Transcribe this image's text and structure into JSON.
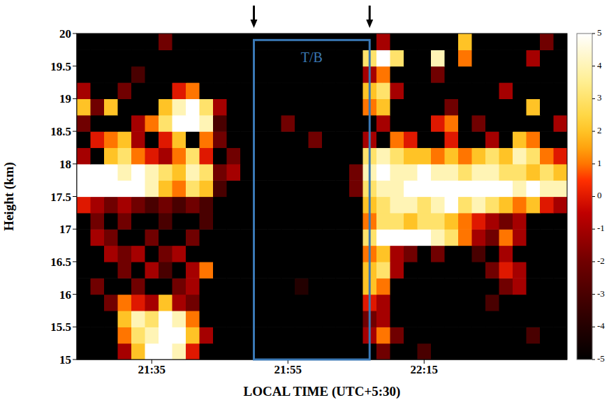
{
  "chart_data": {
    "type": "heatmap",
    "xlabel": "LOCAL TIME (UTC+5:30)",
    "ylabel": "Height (km)",
    "xlim": [
      1284,
      1356
    ],
    "xticks": [
      {
        "value": 1295,
        "label": "21:35"
      },
      {
        "value": 1315,
        "label": "21:55"
      },
      {
        "value": 1335,
        "label": "22:15"
      }
    ],
    "ylim": [
      15,
      20
    ],
    "yticks": [
      15,
      15.5,
      16,
      16.5,
      17,
      17.5,
      18,
      18.5,
      19,
      19.5,
      20
    ],
    "x": [
      1285,
      1287,
      1289,
      1291,
      1293,
      1295,
      1297,
      1299,
      1301,
      1303,
      1305,
      1307,
      1309,
      1311,
      1313,
      1315,
      1317,
      1319,
      1321,
      1323,
      1325,
      1327,
      1329,
      1331,
      1333,
      1335,
      1337,
      1339,
      1341,
      1343,
      1345,
      1347,
      1349,
      1351,
      1353,
      1355
    ],
    "y": [
      15.125,
      15.375,
      15.625,
      15.875,
      16.125,
      16.375,
      16.625,
      16.875,
      17.125,
      17.375,
      17.625,
      17.875,
      18.125,
      18.375,
      18.625,
      18.875,
      19.125,
      19.375,
      19.625,
      19.875
    ],
    "z": [
      [
        -5,
        -5,
        -5,
        -1,
        2,
        5,
        5,
        4,
        0,
        -5,
        -5,
        -5,
        -5,
        -5,
        -5,
        -5,
        -5,
        -5,
        -5,
        -5,
        -5,
        -5,
        -2,
        -5,
        -5,
        -3,
        -5,
        -5,
        -5,
        -5,
        -5,
        -5,
        -5,
        -5,
        -5,
        -5
      ],
      [
        -5,
        -5,
        -5,
        1,
        3,
        4,
        5,
        5,
        2,
        -1,
        -5,
        -5,
        -5,
        -5,
        -5,
        -5,
        -5,
        -5,
        -5,
        -5,
        -5,
        -1,
        1,
        -2,
        -5,
        -5,
        -5,
        -5,
        -5,
        -5,
        -5,
        -5,
        -5,
        -3,
        -5,
        -5
      ],
      [
        -5,
        -5,
        -5,
        2,
        4,
        3,
        5,
        4,
        1,
        -5,
        -5,
        -5,
        -5,
        -5,
        -5,
        -5,
        -5,
        -5,
        -5,
        -5,
        -5,
        -2,
        -1,
        -5,
        -5,
        -5,
        -5,
        -5,
        -5,
        -5,
        -5,
        -5,
        -5,
        -5,
        -5,
        -5
      ],
      [
        -5,
        -5,
        -2,
        1,
        0,
        -1,
        2,
        -1,
        -2,
        -5,
        -5,
        -5,
        -5,
        -5,
        -5,
        -5,
        -5,
        -5,
        -5,
        -5,
        -5,
        0,
        -1,
        -5,
        -5,
        -5,
        -5,
        -5,
        -5,
        -5,
        -3,
        -5,
        -5,
        -5,
        -5,
        -5
      ],
      [
        -5,
        -2,
        -5,
        -5,
        -2,
        -5,
        -5,
        -2,
        -1,
        -5,
        -5,
        -5,
        -5,
        -5,
        -5,
        -5,
        -4,
        -5,
        -5,
        -5,
        -5,
        2,
        1,
        -5,
        -5,
        -5,
        -5,
        -5,
        -5,
        -5,
        -5,
        -2,
        -1,
        -5,
        -5,
        -5
      ],
      [
        -5,
        -5,
        -5,
        -2,
        -5,
        -1,
        -3,
        -5,
        -1,
        1,
        -5,
        -5,
        -5,
        -5,
        -5,
        -5,
        -5,
        -5,
        -5,
        -5,
        -5,
        2,
        3,
        -1,
        -5,
        -5,
        -5,
        -5,
        -5,
        -5,
        -2,
        0,
        -1,
        -5,
        -5,
        -5
      ],
      [
        -5,
        -5,
        -1,
        -2,
        -1,
        -5,
        -2,
        -1,
        -5,
        -5,
        -5,
        -5,
        -5,
        -5,
        -5,
        -5,
        -5,
        -5,
        -5,
        -5,
        -5,
        1,
        2,
        -1,
        -2,
        -5,
        -2,
        -5,
        -5,
        -3,
        -5,
        -1,
        -5,
        -5,
        -5,
        -5
      ],
      [
        -5,
        -1,
        -2,
        -5,
        -5,
        -2,
        -5,
        -5,
        -2,
        -5,
        -5,
        -5,
        -5,
        -5,
        -5,
        -5,
        -5,
        -5,
        -5,
        -5,
        -5,
        3,
        5,
        5,
        5,
        5,
        4,
        3,
        1,
        -1,
        -2,
        1,
        -1,
        -5,
        -5,
        -5
      ],
      [
        -5,
        -2,
        -5,
        -2,
        -5,
        -5,
        -3,
        -5,
        -5,
        -3,
        -5,
        -5,
        -5,
        -5,
        -5,
        -5,
        -5,
        -5,
        -5,
        -5,
        -5,
        1,
        3,
        3,
        2,
        3,
        3,
        2,
        1,
        0,
        -1,
        -2,
        -1,
        -5,
        -5,
        -5
      ],
      [
        0,
        -1,
        -2,
        -1,
        -2,
        -3,
        -2,
        -3,
        -2,
        -3,
        -5,
        -5,
        -5,
        -5,
        -5,
        -5,
        -5,
        -5,
        -5,
        -5,
        -5,
        2,
        3,
        4,
        4,
        3,
        4,
        5,
        3,
        4,
        3,
        2,
        1,
        2,
        0,
        -1
      ],
      [
        5,
        5,
        5,
        5,
        5,
        4,
        2,
        1,
        3,
        2,
        -3,
        -5,
        -5,
        -5,
        -5,
        -5,
        -5,
        -5,
        -5,
        -5,
        -2,
        3,
        4,
        4,
        5,
        5,
        5,
        5,
        5,
        5,
        5,
        5,
        4,
        5,
        4,
        4
      ],
      [
        5,
        5,
        5,
        4,
        5,
        4,
        3,
        2,
        4,
        3,
        -2,
        -1,
        -5,
        -5,
        -5,
        -5,
        -5,
        -5,
        -5,
        -5,
        -2,
        4,
        5,
        4,
        4,
        5,
        4,
        4,
        3,
        4,
        4,
        3,
        3,
        2,
        3,
        2
      ],
      [
        -1,
        -5,
        2,
        3,
        1,
        0,
        -1,
        1,
        3,
        0,
        -5,
        -2,
        -5,
        -5,
        -5,
        -5,
        -5,
        -5,
        -5,
        -5,
        -5,
        3,
        4,
        3,
        2,
        2,
        1,
        2,
        1,
        2,
        3,
        2,
        4,
        3,
        1,
        0
      ],
      [
        -5,
        0,
        1,
        2,
        -1,
        -5,
        0,
        2,
        -5,
        1,
        -2,
        -5,
        -5,
        -5,
        -5,
        -5,
        -5,
        -2,
        -5,
        -5,
        -5,
        -1,
        -5,
        1,
        0,
        -5,
        -5,
        0,
        -5,
        -5,
        -1,
        -5,
        2,
        1,
        -5,
        -5
      ],
      [
        -2,
        -5,
        -5,
        -5,
        -1,
        1,
        3,
        5,
        5,
        4,
        -3,
        -5,
        -5,
        -5,
        -5,
        -2,
        -5,
        -5,
        -5,
        -5,
        -5,
        -5,
        -1,
        -5,
        -5,
        -5,
        0,
        1,
        -5,
        -2,
        -5,
        -5,
        -5,
        -5,
        -5,
        -1
      ],
      [
        2,
        -2,
        2,
        -5,
        -5,
        -5,
        2,
        4,
        5,
        3,
        -1,
        -5,
        -5,
        -5,
        -5,
        -5,
        -5,
        -5,
        -5,
        -5,
        -5,
        1,
        2,
        -5,
        -5,
        -5,
        -5,
        -2,
        -5,
        -5,
        -5,
        -5,
        -5,
        2,
        -5,
        -5
      ],
      [
        -1,
        -5,
        -5,
        -2,
        -5,
        -5,
        -5,
        0,
        1,
        -5,
        -5,
        -5,
        -5,
        -5,
        -5,
        -5,
        -5,
        -5,
        -5,
        -5,
        -5,
        2,
        3,
        -1,
        -5,
        -5,
        -5,
        -5,
        -5,
        -5,
        -5,
        -1,
        -5,
        -5,
        -5,
        -5
      ],
      [
        -5,
        -5,
        -5,
        -5,
        -3,
        -5,
        -5,
        -5,
        -5,
        -5,
        -5,
        -5,
        -5,
        -5,
        -5,
        -5,
        -5,
        -5,
        -5,
        -5,
        -5,
        -1,
        1,
        -5,
        -5,
        -5,
        -2,
        -5,
        -5,
        -5,
        -5,
        -5,
        -5,
        -5,
        -5,
        -5
      ],
      [
        -5,
        -5,
        -5,
        -5,
        -5,
        -5,
        -5,
        -5,
        -5,
        -5,
        -5,
        -5,
        -5,
        -5,
        -5,
        -5,
        -5,
        -5,
        -5,
        -5,
        -5,
        3,
        5,
        3,
        -5,
        -5,
        4,
        -5,
        1,
        -5,
        -5,
        -5,
        -5,
        -1,
        -5,
        -5
      ],
      [
        -5,
        -5,
        -5,
        -5,
        -5,
        -5,
        -2,
        -5,
        -5,
        -5,
        -5,
        -5,
        -5,
        -5,
        -5,
        -5,
        -5,
        -5,
        -5,
        -5,
        -5,
        -5,
        -1,
        -5,
        -5,
        -5,
        -5,
        -5,
        2,
        -5,
        -5,
        -5,
        -5,
        -5,
        -2,
        -5
      ]
    ],
    "colorbar": {
      "range": [
        -5,
        5
      ],
      "ticks": [
        5,
        4,
        3,
        2,
        1,
        0,
        -1,
        -2,
        -3,
        -4,
        -5
      ]
    },
    "annotations": [
      {
        "text": "T/B",
        "x": [
          1310,
          1327
        ],
        "y": [
          15,
          19.9
        ],
        "color": "#3a78b5"
      }
    ]
  }
}
